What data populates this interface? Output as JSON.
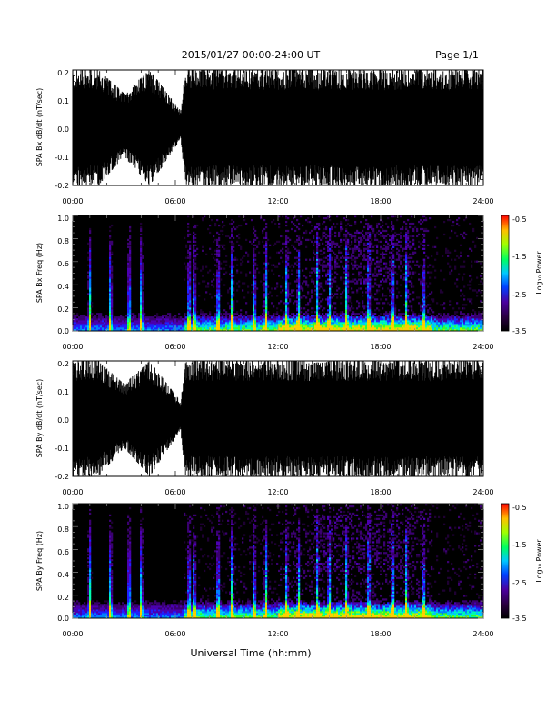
{
  "header": {
    "date_range": "2015/01/27  00:00-24:00 UT",
    "page": "Page 1/1"
  },
  "chart_data": [
    {
      "type": "line",
      "ylabel": "SPA Bx dB/dt (nT/sec)",
      "ylim": [
        -0.2,
        0.2
      ],
      "ytick_labels": [
        "0.2",
        "0.1",
        "0.0",
        "-0.1",
        "-0.2"
      ],
      "ytick_values": [
        0.2,
        0.1,
        0.0,
        -0.1,
        -0.2
      ],
      "xlim": [
        "00:00",
        "24:00"
      ],
      "xtick_labels": [
        "00:00",
        "06:00",
        "12:00",
        "18:00",
        "24:00"
      ],
      "envelope": {
        "x_hours": [
          0,
          1.5,
          3,
          4.5,
          6.3,
          6.6,
          9,
          12,
          15,
          18,
          21,
          24
        ],
        "y_max": [
          0.2,
          0.2,
          0.12,
          0.2,
          0.06,
          0.2,
          0.2,
          0.2,
          0.2,
          0.2,
          0.2,
          0.2
        ],
        "y_min": [
          -0.2,
          -0.2,
          -0.1,
          -0.2,
          -0.04,
          -0.2,
          -0.2,
          -0.2,
          -0.2,
          -0.2,
          -0.2,
          -0.2
        ]
      }
    },
    {
      "type": "heatmap",
      "ylabel": "SPA Bx Freq (Hz)",
      "ylim": [
        0.0,
        1.0
      ],
      "ytick_labels": [
        "1.0",
        "0.8",
        "0.6",
        "0.4",
        "0.2",
        "0.0"
      ],
      "ytick_values": [
        1.0,
        0.8,
        0.6,
        0.4,
        0.2,
        0.0
      ],
      "xlim": [
        "00:00",
        "24:00"
      ],
      "xtick_labels": [
        "00:00",
        "06:00",
        "12:00",
        "18:00",
        "24:00"
      ],
      "colorbar": {
        "label": "Log₁₀ Power",
        "range": [
          -3.5,
          -0.5
        ],
        "tick_labels": [
          "-0.5",
          "-1.5",
          "-2.5",
          "-3.5"
        ],
        "tick_values": [
          -0.5,
          -1.5,
          -2.5,
          -3.5
        ]
      },
      "strong_bursts_hours": [
        1.0,
        2.2,
        3.3,
        4.0,
        6.8,
        7.1,
        8.5,
        9.3,
        10.6,
        11.3,
        12.5,
        13.2,
        14.3,
        15.0,
        16.0,
        17.3,
        18.7,
        19.5,
        20.5
      ]
    },
    {
      "type": "line",
      "ylabel": "SPA By dB/dt (nT/sec)",
      "ylim": [
        -0.2,
        0.2
      ],
      "ytick_labels": [
        "0.2",
        "0.1",
        "0.0",
        "-0.1",
        "-0.2"
      ],
      "ytick_values": [
        0.2,
        0.1,
        0.0,
        -0.1,
        -0.2
      ],
      "xlim": [
        "00:00",
        "24:00"
      ],
      "xtick_labels": [
        "00:00",
        "06:00",
        "12:00",
        "18:00",
        "24:00"
      ],
      "envelope": {
        "x_hours": [
          0,
          1.5,
          3,
          4.5,
          6.3,
          6.6,
          9,
          12,
          15,
          18,
          21,
          24
        ],
        "y_max": [
          0.2,
          0.2,
          0.12,
          0.2,
          0.06,
          0.2,
          0.2,
          0.2,
          0.2,
          0.2,
          0.2,
          0.2
        ],
        "y_min": [
          -0.2,
          -0.2,
          -0.1,
          -0.2,
          -0.04,
          -0.2,
          -0.2,
          -0.2,
          -0.2,
          -0.2,
          -0.2,
          -0.2
        ]
      }
    },
    {
      "type": "heatmap",
      "ylabel": "SPA By Freq (Hz)",
      "ylim": [
        0.0,
        1.0
      ],
      "ytick_labels": [
        "1.0",
        "0.8",
        "0.6",
        "0.4",
        "0.2",
        "0.0"
      ],
      "ytick_values": [
        1.0,
        0.8,
        0.6,
        0.4,
        0.2,
        0.0
      ],
      "xlim": [
        "00:00",
        "24:00"
      ],
      "xtick_labels": [
        "00:00",
        "06:00",
        "12:00",
        "18:00",
        "24:00"
      ],
      "colorbar": {
        "label": "Log₁₀ Power",
        "range": [
          -3.5,
          -0.5
        ],
        "tick_labels": [
          "-0.5",
          "-1.5",
          "-2.5",
          "-3.5"
        ],
        "tick_values": [
          -0.5,
          -1.5,
          -2.5,
          -3.5
        ]
      },
      "strong_bursts_hours": [
        1.0,
        2.2,
        3.3,
        4.0,
        6.8,
        7.1,
        8.5,
        9.3,
        10.6,
        11.3,
        12.5,
        13.2,
        14.3,
        15.0,
        16.0,
        17.3,
        18.7,
        19.5,
        20.5
      ]
    }
  ],
  "xlabel": "Universal Time (hh:mm)"
}
